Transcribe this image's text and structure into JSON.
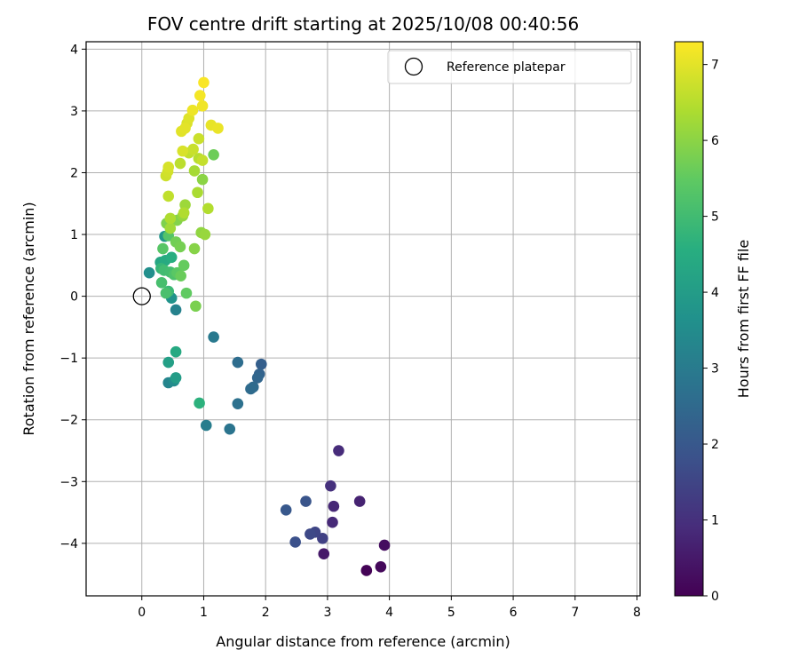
{
  "chart_data": {
    "type": "scatter",
    "title": "FOV centre drift starting at 2025/10/08 00:40:56",
    "xlabel": "Angular distance from reference (arcmin)",
    "ylabel": "Rotation from reference (arcmin)",
    "xlim": [
      -0.9,
      8.05
    ],
    "ylim": [
      -4.85,
      4.12
    ],
    "x_ticks": [
      0,
      1,
      2,
      3,
      4,
      5,
      6,
      7,
      8
    ],
    "y_ticks": [
      -4,
      -3,
      -2,
      -1,
      0,
      1,
      2,
      3,
      4
    ],
    "x_tick_labels": [
      "0",
      "1",
      "2",
      "3",
      "4",
      "5",
      "6",
      "7",
      "8"
    ],
    "y_tick_labels": [
      "−4",
      "−3",
      "−2",
      "−1",
      "0",
      "1",
      "2",
      "3",
      "4"
    ],
    "grid": true,
    "legend": {
      "placement": "top-right",
      "entries": [
        {
          "label": "Reference platepar",
          "marker": "open-circle",
          "x": 0,
          "y": 0
        }
      ]
    },
    "colorbar": {
      "label": "Hours from first FF file",
      "colormap": "viridis",
      "range": [
        0,
        7.3
      ],
      "ticks": [
        0,
        1,
        2,
        3,
        4,
        5,
        6,
        7
      ],
      "tick_labels": [
        "0",
        "1",
        "2",
        "3",
        "4",
        "5",
        "6",
        "7"
      ]
    },
    "series": [
      {
        "points": [
          {
            "x": 3.63,
            "y": -4.44,
            "c": 0.05
          },
          {
            "x": 3.86,
            "y": -4.38,
            "c": 0.15
          },
          {
            "x": 3.92,
            "y": -4.03,
            "c": 0.25
          },
          {
            "x": 2.94,
            "y": -4.17,
            "c": 0.5
          },
          {
            "x": 3.52,
            "y": -3.32,
            "c": 0.7
          },
          {
            "x": 3.1,
            "y": -3.4,
            "c": 0.8
          },
          {
            "x": 3.08,
            "y": -3.66,
            "c": 0.85
          },
          {
            "x": 3.18,
            "y": -2.5,
            "c": 0.9
          },
          {
            "x": 3.05,
            "y": -3.07,
            "c": 1.0
          },
          {
            "x": 2.92,
            "y": -3.92,
            "c": 1.4
          },
          {
            "x": 2.8,
            "y": -3.82,
            "c": 1.5
          },
          {
            "x": 2.72,
            "y": -3.85,
            "c": 1.6
          },
          {
            "x": 2.48,
            "y": -3.98,
            "c": 1.8
          },
          {
            "x": 2.65,
            "y": -3.32,
            "c": 1.9
          },
          {
            "x": 2.33,
            "y": -3.46,
            "c": 2.0
          },
          {
            "x": 1.93,
            "y": -1.1,
            "c": 2.2
          },
          {
            "x": 1.9,
            "y": -1.26,
            "c": 2.3
          },
          {
            "x": 1.87,
            "y": -1.32,
            "c": 2.4
          },
          {
            "x": 1.8,
            "y": -1.47,
            "c": 2.5
          },
          {
            "x": 1.76,
            "y": -1.5,
            "c": 2.55
          },
          {
            "x": 1.55,
            "y": -1.07,
            "c": 2.6
          },
          {
            "x": 1.55,
            "y": -1.74,
            "c": 2.7
          },
          {
            "x": 1.42,
            "y": -2.15,
            "c": 2.8
          },
          {
            "x": 1.16,
            "y": -0.66,
            "c": 2.95
          },
          {
            "x": 1.04,
            "y": -2.09,
            "c": 3.05
          },
          {
            "x": 0.55,
            "y": -0.22,
            "c": 3.2
          },
          {
            "x": 0.43,
            "y": -1.4,
            "c": 3.3
          },
          {
            "x": 0.52,
            "y": -1.37,
            "c": 3.5
          },
          {
            "x": 0.12,
            "y": 0.38,
            "c": 3.6
          },
          {
            "x": 0.48,
            "y": -0.03,
            "c": 3.7
          },
          {
            "x": 0.37,
            "y": 0.97,
            "c": 3.8
          },
          {
            "x": 0.55,
            "y": -1.32,
            "c": 4.0
          },
          {
            "x": 0.43,
            "y": -1.07,
            "c": 4.1
          },
          {
            "x": 0.3,
            "y": 0.55,
            "c": 4.3
          },
          {
            "x": 0.55,
            "y": -0.9,
            "c": 4.4
          },
          {
            "x": 0.38,
            "y": 0.58,
            "c": 4.45
          },
          {
            "x": 0.48,
            "y": 0.63,
            "c": 4.55
          },
          {
            "x": 0.93,
            "y": -1.73,
            "c": 4.65
          },
          {
            "x": 0.31,
            "y": 0.45,
            "c": 4.8
          },
          {
            "x": 0.43,
            "y": 0.08,
            "c": 4.9
          },
          {
            "x": 0.36,
            "y": 0.42,
            "c": 5.0
          },
          {
            "x": 0.46,
            "y": 0.39,
            "c": 5.05
          },
          {
            "x": 0.32,
            "y": 0.22,
            "c": 5.1
          },
          {
            "x": 0.39,
            "y": 0.05,
            "c": 5.15
          },
          {
            "x": 0.52,
            "y": 0.35,
            "c": 5.2
          },
          {
            "x": 0.43,
            "y": 0.98,
            "c": 5.3
          },
          {
            "x": 0.34,
            "y": 0.77,
            "c": 5.35
          },
          {
            "x": 0.57,
            "y": 0.38,
            "c": 5.4
          },
          {
            "x": 0.72,
            "y": 0.05,
            "c": 5.5
          },
          {
            "x": 0.68,
            "y": 0.5,
            "c": 5.55
          },
          {
            "x": 0.63,
            "y": 0.33,
            "c": 5.6
          },
          {
            "x": 1.16,
            "y": 2.29,
            "c": 5.65
          },
          {
            "x": 0.55,
            "y": 0.88,
            "c": 5.7
          },
          {
            "x": 0.62,
            "y": 0.8,
            "c": 5.75
          },
          {
            "x": 0.87,
            "y": -0.16,
            "c": 5.8
          },
          {
            "x": 0.4,
            "y": 1.18,
            "c": 5.85
          },
          {
            "x": 0.57,
            "y": 1.23,
            "c": 5.9
          },
          {
            "x": 0.85,
            "y": 0.77,
            "c": 5.95
          },
          {
            "x": 0.98,
            "y": 1.89,
            "c": 6.0
          },
          {
            "x": 0.96,
            "y": 1.03,
            "c": 6.05
          },
          {
            "x": 0.66,
            "y": 1.3,
            "c": 6.1
          },
          {
            "x": 1.02,
            "y": 1.0,
            "c": 6.15
          },
          {
            "x": 0.7,
            "y": 1.48,
            "c": 6.2
          },
          {
            "x": 0.46,
            "y": 1.1,
            "c": 6.25
          },
          {
            "x": 0.85,
            "y": 2.03,
            "c": 6.3
          },
          {
            "x": 0.9,
            "y": 1.68,
            "c": 6.35
          },
          {
            "x": 0.46,
            "y": 1.26,
            "c": 6.4
          },
          {
            "x": 0.68,
            "y": 1.35,
            "c": 6.42
          },
          {
            "x": 1.07,
            "y": 1.42,
            "c": 6.45
          },
          {
            "x": 0.92,
            "y": 2.23,
            "c": 6.5
          },
          {
            "x": 0.62,
            "y": 2.15,
            "c": 6.55
          },
          {
            "x": 0.43,
            "y": 1.62,
            "c": 6.6
          },
          {
            "x": 0.76,
            "y": 2.32,
            "c": 6.62
          },
          {
            "x": 0.98,
            "y": 2.2,
            "c": 6.65
          },
          {
            "x": 0.83,
            "y": 2.38,
            "c": 6.7
          },
          {
            "x": 0.92,
            "y": 2.55,
            "c": 6.72
          },
          {
            "x": 0.39,
            "y": 1.95,
            "c": 6.75
          },
          {
            "x": 0.42,
            "y": 2.02,
            "c": 6.8
          },
          {
            "x": 0.43,
            "y": 2.09,
            "c": 6.85
          },
          {
            "x": 0.66,
            "y": 2.35,
            "c": 6.88
          },
          {
            "x": 0.73,
            "y": 2.8,
            "c": 6.9
          },
          {
            "x": 0.76,
            "y": 2.88,
            "c": 6.95
          },
          {
            "x": 0.64,
            "y": 2.67,
            "c": 6.98
          },
          {
            "x": 0.7,
            "y": 2.72,
            "c": 7.0
          },
          {
            "x": 1.12,
            "y": 2.77,
            "c": 7.05
          },
          {
            "x": 1.23,
            "y": 2.72,
            "c": 7.08
          },
          {
            "x": 0.82,
            "y": 3.01,
            "c": 7.12
          },
          {
            "x": 0.98,
            "y": 3.08,
            "c": 7.15
          },
          {
            "x": 0.94,
            "y": 3.25,
            "c": 7.2
          },
          {
            "x": 1.0,
            "y": 3.46,
            "c": 7.25
          }
        ]
      }
    ]
  }
}
